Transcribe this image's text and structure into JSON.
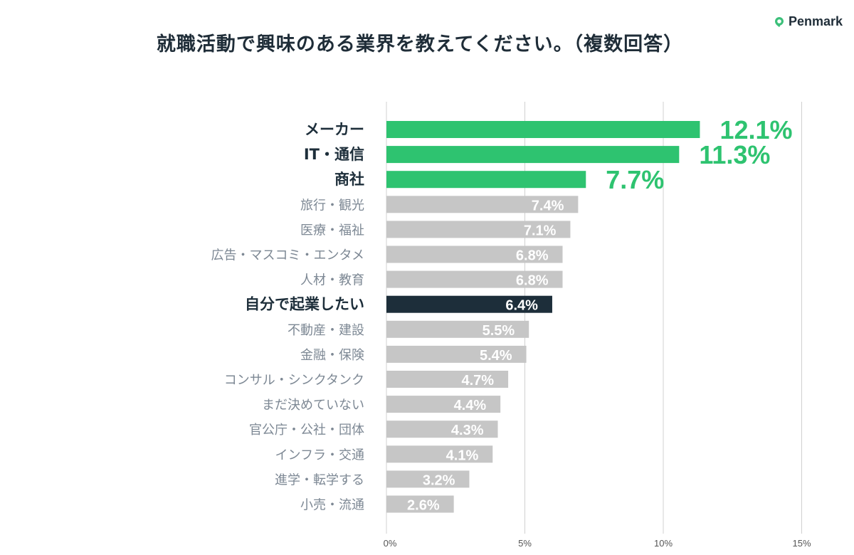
{
  "logo": {
    "text": "Penmark",
    "icon": "map-pin-icon",
    "color": "#3cc07a"
  },
  "chart_data": {
    "type": "bar",
    "orientation": "horizontal",
    "title": "就職活動で興味のある業界を教えてください。（複数回答）",
    "categories": [
      "メーカー",
      "IT・通信",
      "商社",
      "旅行・観光",
      "医療・福祉",
      "広告・マスコミ・エンタメ",
      "人材・教育",
      "自分で起業したい",
      "不動産・建設",
      "金融・保険",
      "コンサル・シンクタンク",
      "まだ決めていない",
      "官公庁・公社・団体",
      "インフラ・交通",
      "進学・転学する",
      "小売・流通"
    ],
    "values": [
      12.1,
      11.3,
      7.7,
      7.4,
      7.1,
      6.8,
      6.8,
      6.4,
      5.5,
      5.4,
      4.7,
      4.4,
      4.3,
      4.1,
      3.2,
      2.6
    ],
    "data_labels": [
      "12.1%",
      "11.3%",
      "7.7%",
      "7.4%",
      "7.1%",
      "6.8%",
      "6.8%",
      "6.4%",
      "5.5%",
      "5.4%",
      "4.7%",
      "4.4%",
      "4.3%",
      "4.1%",
      "3.2%",
      "2.6%"
    ],
    "highlight": [
      "top",
      "top",
      "top",
      "none",
      "none",
      "none",
      "none",
      "dark",
      "none",
      "none",
      "none",
      "none",
      "none",
      "none",
      "none",
      "none"
    ],
    "xlim": [
      0,
      15
    ],
    "xticks": [
      0,
      5,
      10,
      15
    ],
    "xtick_labels": [
      "0%",
      "5%",
      "10%",
      "15%"
    ],
    "grid": true,
    "colors": {
      "top": "#2ec370",
      "dark": "#1d2e3a",
      "none": "#c6c6c6",
      "label_muted": "#7d8894",
      "label_strong": "#1d2e3a",
      "grid": "#d0d0d0"
    }
  }
}
